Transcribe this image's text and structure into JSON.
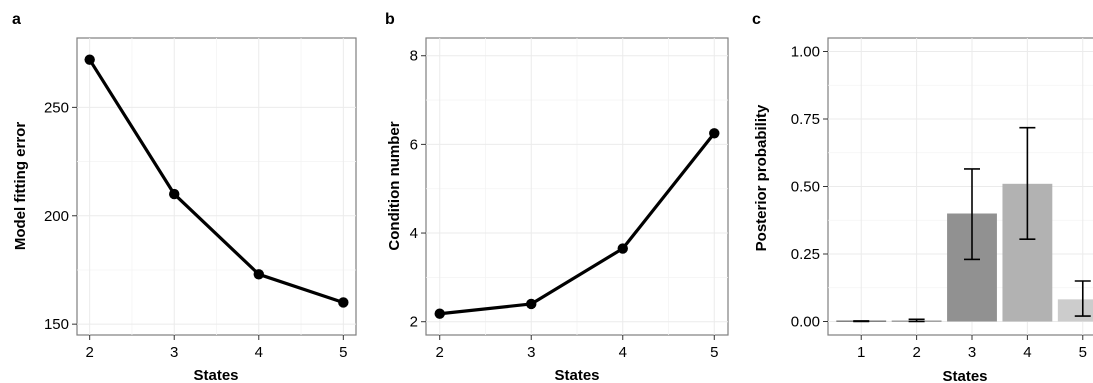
{
  "chart_data": [
    {
      "panel": "a",
      "type": "line",
      "title": "",
      "xlabel": "States",
      "ylabel": "Model fitting error",
      "x": [
        2,
        3,
        4,
        5
      ],
      "y": [
        272,
        210,
        173,
        160
      ],
      "xlim": [
        1.85,
        5.15
      ],
      "ylim": [
        145,
        282
      ],
      "xticks": [
        2,
        3,
        4,
        5
      ],
      "yticks": [
        150,
        200,
        250
      ],
      "grid": true
    },
    {
      "panel": "b",
      "type": "line",
      "title": "",
      "xlabel": "States",
      "ylabel": "Condition number",
      "x": [
        2,
        3,
        4,
        5
      ],
      "y": [
        2.18,
        2.4,
        3.65,
        6.25
      ],
      "xlim": [
        1.85,
        5.15
      ],
      "ylim": [
        1.7,
        8.4
      ],
      "xticks": [
        2,
        3,
        4,
        5
      ],
      "yticks": [
        2,
        4,
        6,
        8
      ],
      "grid": true
    },
    {
      "panel": "c",
      "type": "bar",
      "title": "",
      "xlabel": "States",
      "ylabel": "Posterior probability",
      "categories": [
        "1",
        "2",
        "3",
        "4",
        "5"
      ],
      "values": [
        0.0,
        0.003,
        0.4,
        0.51,
        0.082
      ],
      "error_low": [
        0.0,
        0.0,
        0.23,
        0.305,
        0.02
      ],
      "error_high": [
        0.002,
        0.008,
        0.565,
        0.718,
        0.15
      ],
      "bar_colors": [
        "#1a1a1a",
        "#595959",
        "#919191",
        "#b2b2b2",
        "#cccccc"
      ],
      "ylim": [
        -0.05,
        1.05
      ],
      "yticks": [
        "0.00",
        "0.25",
        "0.50",
        "0.75",
        "1.00"
      ],
      "grid": true
    }
  ]
}
